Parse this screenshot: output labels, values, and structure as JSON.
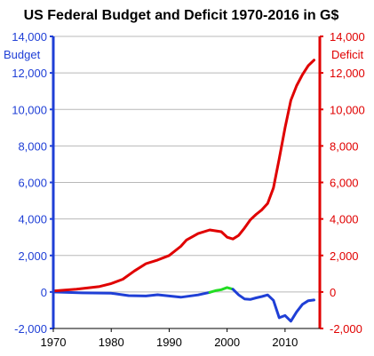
{
  "chart_data": {
    "type": "line",
    "title": "US Federal Budget and Deficit 1970-2016 in G$",
    "left_axis": {
      "label": "Budget",
      "ylim": [
        -2000,
        14000
      ],
      "color": "#1f3fd6",
      "ticks": [
        "-2,000",
        "0",
        "2,000",
        "4,000",
        "6,000",
        "8,000",
        "10,000",
        "12,000",
        "14,000"
      ]
    },
    "right_axis": {
      "label": "Deficit",
      "ylim": [
        -2000,
        14000
      ],
      "color": "#e00000",
      "ticks": [
        "-2,000",
        "0",
        "2,000",
        "4,000",
        "6,000",
        "8,000",
        "10,000",
        "12,000",
        "14,000"
      ]
    },
    "x_axis": {
      "xlim": [
        1970,
        2016
      ],
      "ticks": [
        "1970",
        "1980",
        "1990",
        "2000",
        "2010"
      ]
    },
    "grid": true,
    "series": [
      {
        "axis": "left",
        "color": "#1f3fd6",
        "points": [
          [
            1970,
            0
          ],
          [
            1975,
            -50
          ],
          [
            1980,
            -70
          ],
          [
            1983,
            -200
          ],
          [
            1986,
            -220
          ],
          [
            1988,
            -150
          ],
          [
            1990,
            -220
          ],
          [
            1992,
            -290
          ],
          [
            1995,
            -160
          ],
          [
            1997,
            -22
          ]
        ]
      },
      {
        "axis": "left",
        "color": "#22dd22",
        "points": [
          [
            1997,
            -22
          ],
          [
            1998,
            70
          ],
          [
            1999,
            126
          ],
          [
            2000,
            240
          ],
          [
            2001,
            150
          ]
        ]
      },
      {
        "axis": "left",
        "color": "#1f3fd6",
        "points": [
          [
            2001,
            150
          ],
          [
            2002,
            -160
          ],
          [
            2003,
            -380
          ],
          [
            2004,
            -410
          ],
          [
            2005,
            -320
          ],
          [
            2006,
            -250
          ],
          [
            2007,
            -160
          ],
          [
            2008,
            -460
          ],
          [
            2009,
            -1410
          ],
          [
            2010,
            -1290
          ],
          [
            2011,
            -1600
          ],
          [
            2012,
            -1090
          ],
          [
            2013,
            -680
          ],
          [
            2014,
            -480
          ],
          [
            2015,
            -440
          ]
        ]
      },
      {
        "axis": "right",
        "color": "#e00000",
        "points": [
          [
            1970,
            50
          ],
          [
            1974,
            150
          ],
          [
            1978,
            300
          ],
          [
            1980,
            460
          ],
          [
            1982,
            700
          ],
          [
            1984,
            1150
          ],
          [
            1986,
            1550
          ],
          [
            1988,
            1750
          ],
          [
            1990,
            2000
          ],
          [
            1992,
            2500
          ],
          [
            1993,
            2850
          ],
          [
            1995,
            3200
          ],
          [
            1997,
            3400
          ],
          [
            1999,
            3300
          ],
          [
            2000,
            3000
          ],
          [
            2001,
            2900
          ],
          [
            2002,
            3100
          ],
          [
            2003,
            3500
          ],
          [
            2004,
            3950
          ],
          [
            2005,
            4250
          ],
          [
            2006,
            4500
          ],
          [
            2007,
            4850
          ],
          [
            2008,
            5700
          ],
          [
            2009,
            7300
          ],
          [
            2010,
            9000
          ],
          [
            2011,
            10500
          ],
          [
            2012,
            11300
          ],
          [
            2013,
            11900
          ],
          [
            2014,
            12400
          ],
          [
            2015,
            12700
          ]
        ]
      }
    ]
  }
}
